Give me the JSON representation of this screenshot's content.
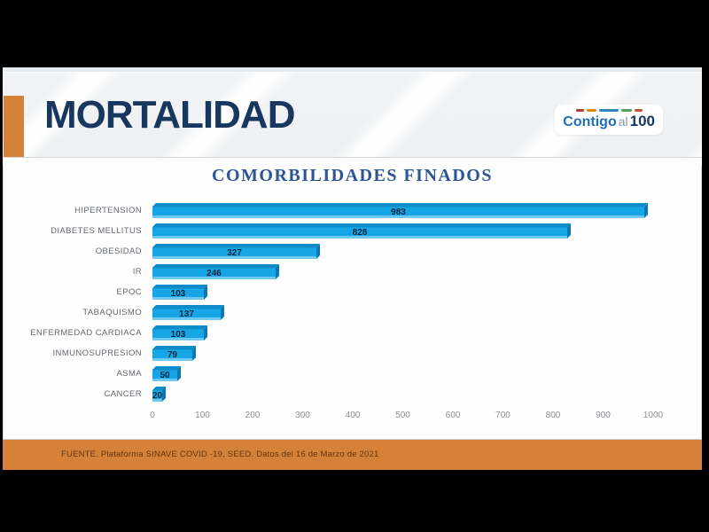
{
  "slide": {
    "header": {
      "title": "MORTALIDAD",
      "logo": {
        "part1": "Contigo",
        "part2": "al",
        "part3": "100",
        "dash_colors": [
          "#b03a2e",
          "#d68910",
          "#2e86c1",
          "#52a356",
          "#c0532b"
        ],
        "dash_widths": [
          9,
          11,
          22,
          12,
          9
        ]
      }
    },
    "footer": {
      "source": "FUENTE. Plataforma SINAVE COVID -19, SEED. Datos del 16 de Marzo de 2021"
    },
    "colors": {
      "accent_orange": "#d5813a",
      "title_navy": "#17375e",
      "chart_title_blue": "#2d5496",
      "bar_fill": "#17a6e5",
      "bar_top_face": "#0e8cc9",
      "bar_right_face": "#0b7ab3",
      "value_text": "#06283f",
      "category_text": "#64696e",
      "tick_text": "#8b8f93",
      "frame_black": "#000000"
    }
  },
  "chart_data": {
    "type": "bar",
    "orientation": "horizontal",
    "title": "COMORBILIDADES FINADOS",
    "categories": [
      "HIPERTENSION",
      "DIABETES MELLITUS",
      "OBESIDAD",
      "IR",
      "EPOC",
      "TABAQUISMO",
      "ENFERMEDAD CARDIACA",
      "INMUNOSUPRESION",
      "ASMA",
      "CANCER"
    ],
    "values": [
      983,
      828,
      327,
      246,
      103,
      137,
      103,
      79,
      50,
      20
    ],
    "xlabel": "",
    "ylabel": "",
    "xlim": [
      0,
      1000
    ],
    "x_ticks": [
      0,
      100,
      200,
      300,
      400,
      500,
      600,
      700,
      800,
      900,
      1000
    ],
    "grid": false,
    "legend": false,
    "value_labels": "centered on bars",
    "bar_style": "3d-extruded-cyan"
  }
}
